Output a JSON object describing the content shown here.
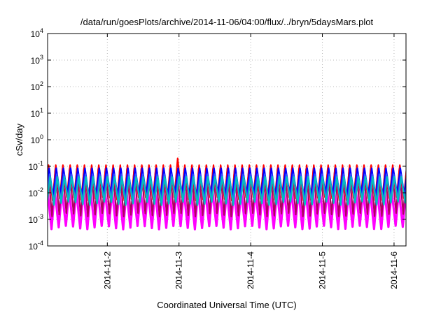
{
  "chart_data": {
    "type": "line",
    "title": "/data/run/goesPlots/archive/2014-11-06/04:00/flux/../bryn/5daysMars.plot",
    "xlabel": "Coordinated Universal Time (UTC)",
    "ylabel": "cSv/day",
    "y_scale": "log",
    "ylim": [
      0.0001,
      10000
    ],
    "y_ticks": [
      {
        "value": 0.0001,
        "base": "10",
        "exp": "-4"
      },
      {
        "value": 0.001,
        "base": "10",
        "exp": "-3"
      },
      {
        "value": 0.01,
        "base": "10",
        "exp": "-2"
      },
      {
        "value": 0.1,
        "base": "10",
        "exp": "-1"
      },
      {
        "value": 1,
        "base": "10",
        "exp": "0"
      },
      {
        "value": 10,
        "base": "10",
        "exp": "1"
      },
      {
        "value": 100,
        "base": "10",
        "exp": "2"
      },
      {
        "value": 1000,
        "base": "10",
        "exp": "3"
      },
      {
        "value": 10000,
        "base": "10",
        "exp": "4"
      }
    ],
    "xlim": [
      "2014-11-01T04:00",
      "2014-11-06T04:00"
    ],
    "x_ticks": [
      "2014-11-2",
      "2014-11-3",
      "2014-11-4",
      "2014-11-5",
      "2014-11-6"
    ],
    "x_tick_dates": [
      "2014-11-02",
      "2014-11-03",
      "2014-11-04",
      "2014-11-05",
      "2014-11-06"
    ],
    "grid": true,
    "cycle_hours": 2.4,
    "series": [
      {
        "color": "#ff0000",
        "peak": 0.11,
        "trough": 0.006
      },
      {
        "color": "#b00060",
        "peak": 0.08,
        "trough": 0.0015
      },
      {
        "color": "#0000ff",
        "peak": 0.085,
        "trough": 0.008
      },
      {
        "color": "#3050ff",
        "peak": 0.05,
        "trough": 0.005
      },
      {
        "color": "#00c0c0",
        "peak": 0.04,
        "trough": 0.004
      },
      {
        "color": "#ff00ff",
        "peak": 0.012,
        "trough": 0.0005
      }
    ],
    "spike": {
      "x": "2014-11-02T22:48",
      "value": 0.2
    }
  }
}
